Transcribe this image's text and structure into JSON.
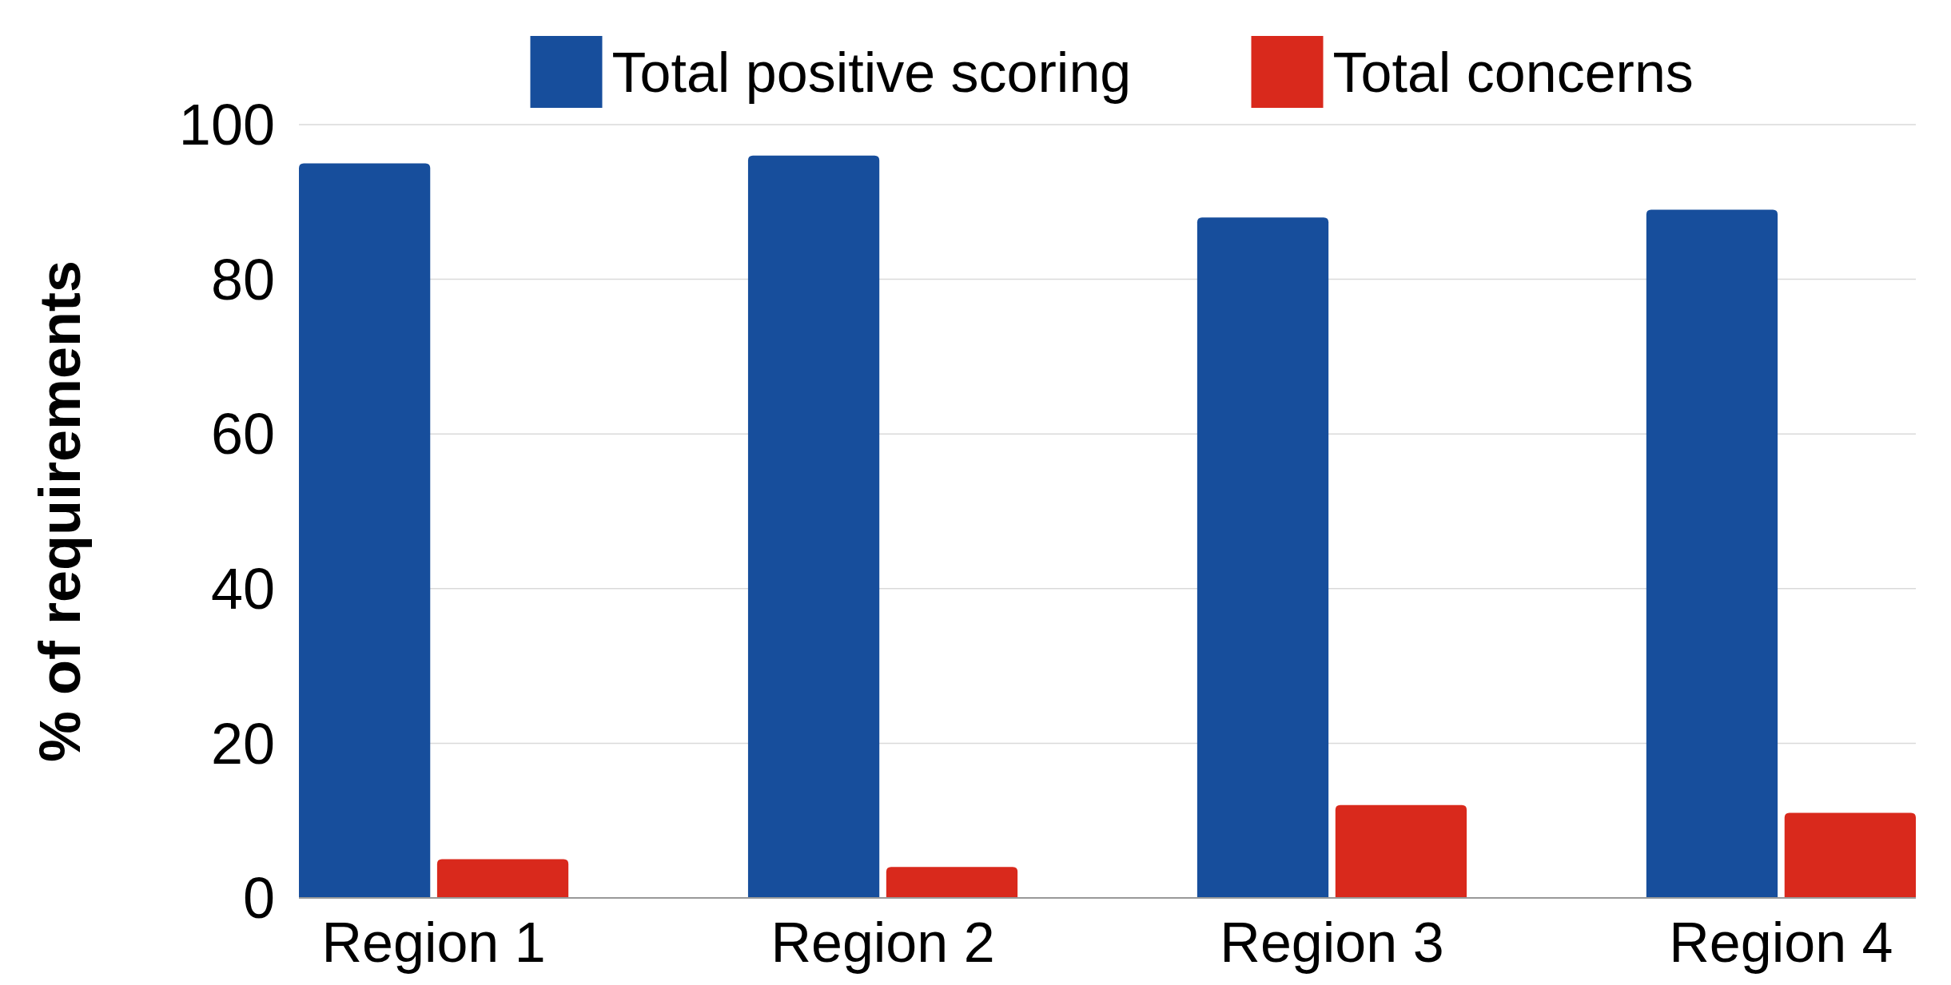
{
  "chart_data": {
    "type": "bar",
    "ylabel": "% of requirements",
    "categories": [
      "Region 1",
      "Region 2",
      "Region 3",
      "Region 4"
    ],
    "series": [
      {
        "name": "Total positive scoring",
        "color": "#174e9c",
        "values": [
          95,
          96,
          88,
          89
        ]
      },
      {
        "name": "Total concerns",
        "color": "#d9291c",
        "values": [
          5,
          4,
          12,
          11
        ]
      }
    ],
    "ylim": [
      0,
      100
    ],
    "yticks": [
      0,
      20,
      40,
      60,
      80,
      100
    ],
    "grid": "y",
    "legend": "top"
  }
}
